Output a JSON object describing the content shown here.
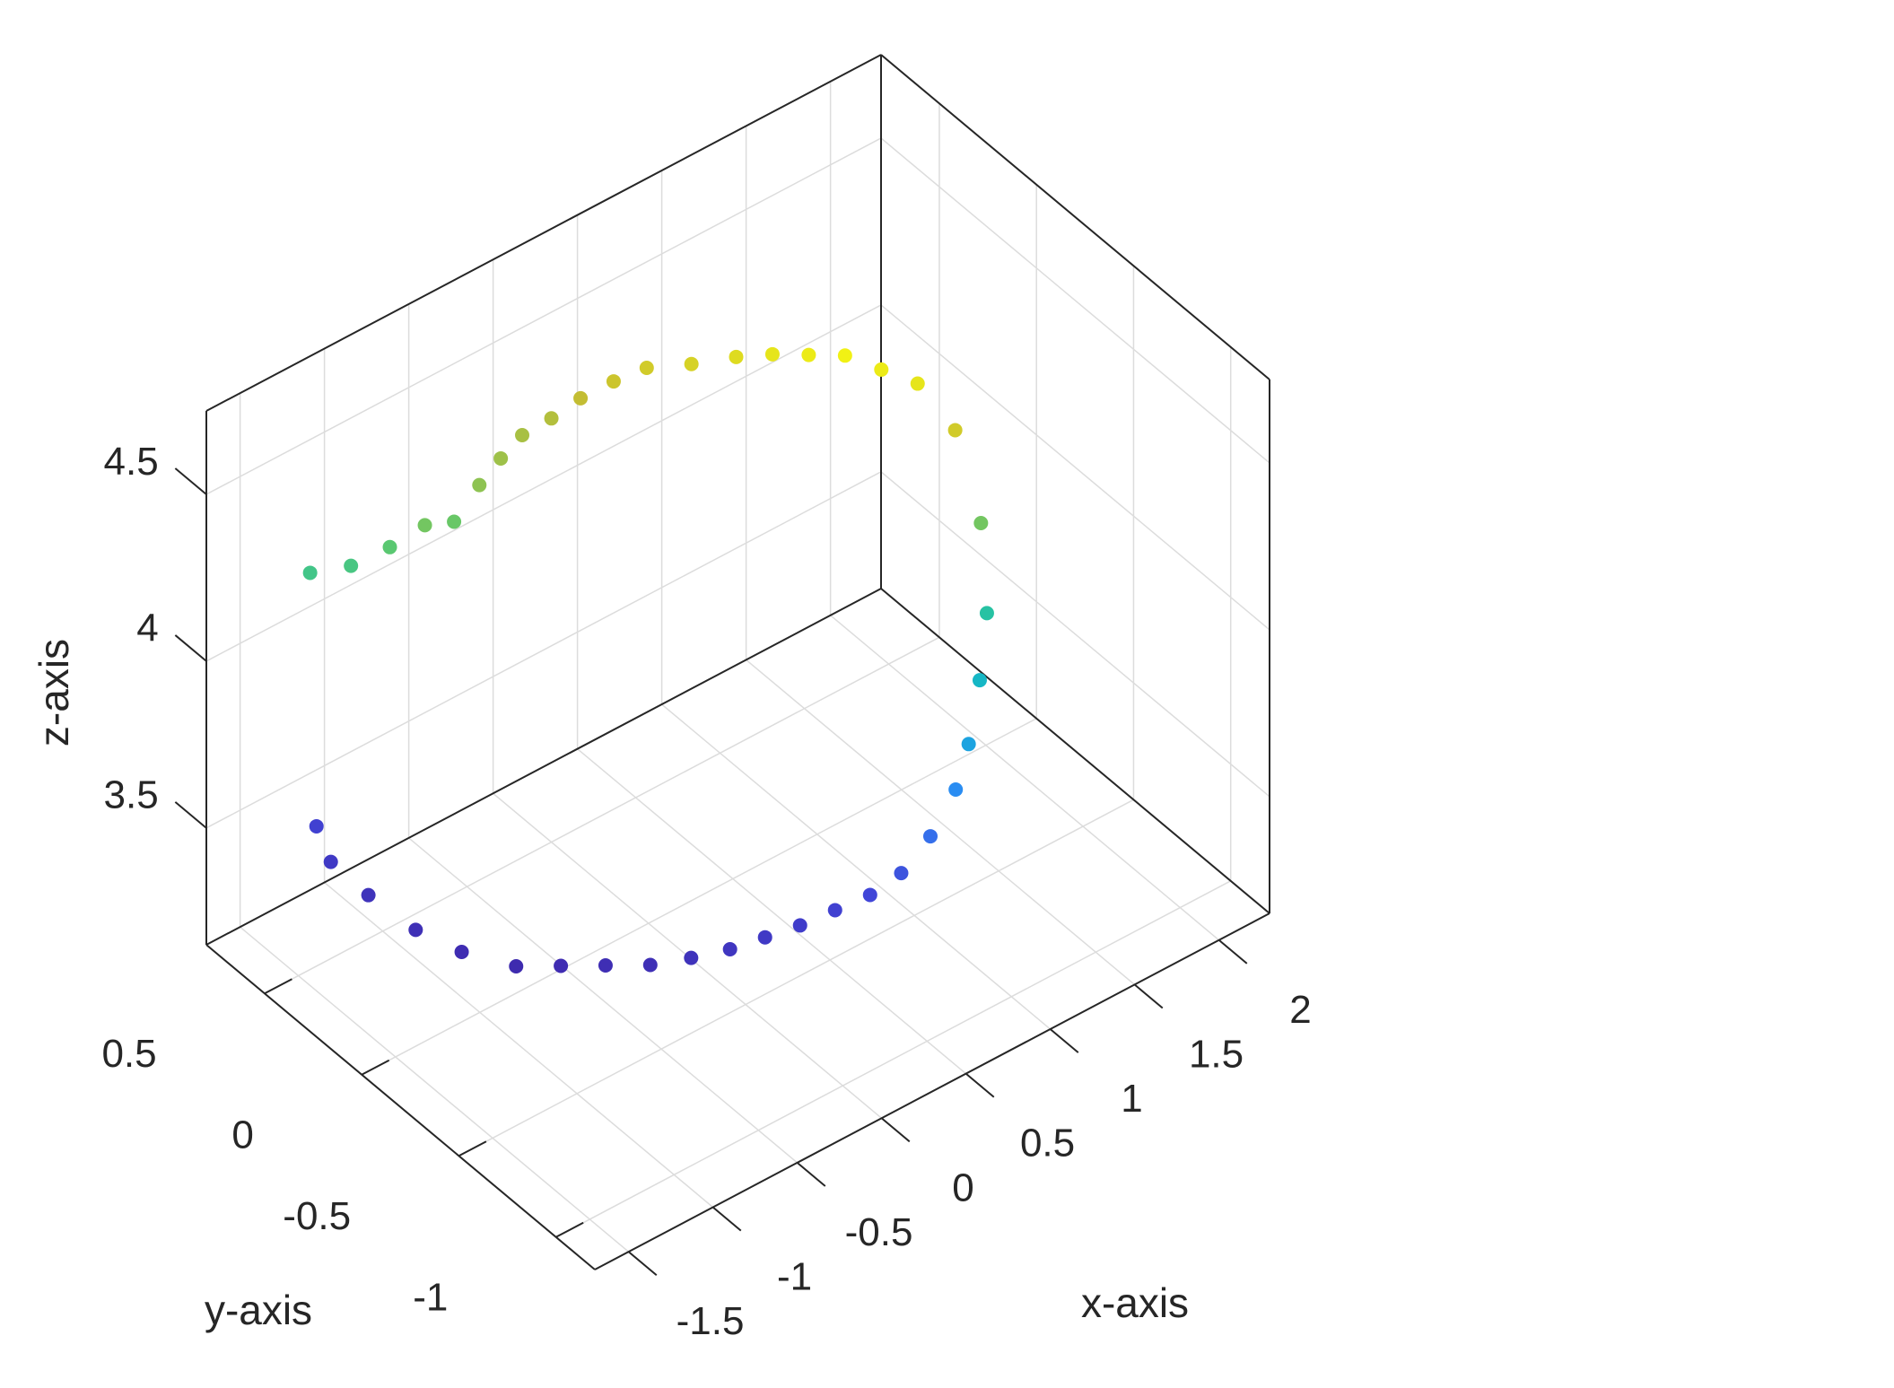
{
  "chart_data": {
    "type": "scatter",
    "title": "",
    "xlabel": "x-axis",
    "ylabel": "y-axis",
    "zlabel": "z-axis",
    "grid": true,
    "colormap": "parula",
    "colors": {
      "axis": "#262626",
      "grid": "#dcdcdc",
      "colormap_stops": [
        "#3e26a8",
        "#4145d7",
        "#2e87f7",
        "#13b1d4",
        "#1ac0b0",
        "#5dc86e",
        "#c5bd32",
        "#f9fb0e"
      ]
    },
    "xlim": [
      -1.7,
      2.3
    ],
    "ylim": [
      -1.2,
      0.8
    ],
    "zlim": [
      3.15,
      4.75
    ],
    "x_ticks": [
      {
        "value": -1.5,
        "label": "-1.5"
      },
      {
        "value": -1.0,
        "label": "-1"
      },
      {
        "value": -0.5,
        "label": "-0.5"
      },
      {
        "value": 0.0,
        "label": "0"
      },
      {
        "value": 0.5,
        "label": "0.5"
      },
      {
        "value": 1.0,
        "label": "1"
      },
      {
        "value": 1.5,
        "label": "1.5"
      },
      {
        "value": 2.0,
        "label": "2"
      }
    ],
    "y_ticks": [
      {
        "value": -1.0,
        "label": "-1"
      },
      {
        "value": -0.5,
        "label": "-0.5"
      },
      {
        "value": 0.0,
        "label": "0"
      },
      {
        "value": 0.5,
        "label": "0.5"
      }
    ],
    "z_ticks": [
      {
        "value": 3.5,
        "label": "3.5"
      },
      {
        "value": 4.0,
        "label": "4"
      },
      {
        "value": 4.5,
        "label": "4.5"
      }
    ],
    "series": [
      {
        "points": [
          [
            -1.2,
            0.7,
            4.18
          ],
          [
            -1.05,
            0.62,
            4.2
          ],
          [
            -0.9,
            0.55,
            4.25
          ],
          [
            -0.75,
            0.5,
            4.3
          ],
          [
            -0.6,
            0.48,
            4.28
          ],
          [
            -0.45,
            0.48,
            4.35
          ],
          [
            -0.3,
            0.5,
            4.38
          ],
          [
            -0.15,
            0.52,
            4.4
          ],
          [
            0.0,
            0.5,
            4.42
          ],
          [
            0.15,
            0.48,
            4.45
          ],
          [
            0.3,
            0.44,
            4.48
          ],
          [
            0.45,
            0.4,
            4.5
          ],
          [
            0.6,
            0.3,
            4.52
          ],
          [
            0.75,
            0.2,
            4.55
          ],
          [
            0.85,
            0.1,
            4.58
          ],
          [
            0.95,
            0.0,
            4.6
          ],
          [
            1.05,
            -0.1,
            4.62
          ],
          [
            1.15,
            -0.2,
            4.6
          ],
          [
            1.25,
            -0.3,
            4.58
          ],
          [
            1.3,
            -0.45,
            4.5
          ],
          [
            1.28,
            -0.6,
            4.3
          ],
          [
            1.2,
            -0.7,
            4.1
          ],
          [
            1.1,
            -0.75,
            3.95
          ],
          [
            1.0,
            -0.78,
            3.8
          ],
          [
            0.9,
            -0.8,
            3.7
          ],
          [
            0.75,
            -0.8,
            3.6
          ],
          [
            0.6,
            -0.78,
            3.52
          ],
          [
            0.45,
            -0.75,
            3.48
          ],
          [
            0.3,
            -0.7,
            3.45
          ],
          [
            0.15,
            -0.65,
            3.42
          ],
          [
            0.0,
            -0.6,
            3.4
          ],
          [
            -0.15,
            -0.55,
            3.38
          ],
          [
            -0.3,
            -0.48,
            3.36
          ],
          [
            -0.45,
            -0.4,
            3.34
          ],
          [
            -0.6,
            -0.3,
            3.33
          ],
          [
            -0.75,
            -0.2,
            3.32
          ],
          [
            -0.9,
            -0.1,
            3.31
          ],
          [
            -1.05,
            0.05,
            3.32
          ],
          [
            -1.15,
            0.2,
            3.34
          ],
          [
            -1.2,
            0.4,
            3.36
          ],
          [
            -1.25,
            0.55,
            3.4
          ],
          [
            -1.22,
            0.65,
            3.45
          ]
        ]
      }
    ]
  }
}
